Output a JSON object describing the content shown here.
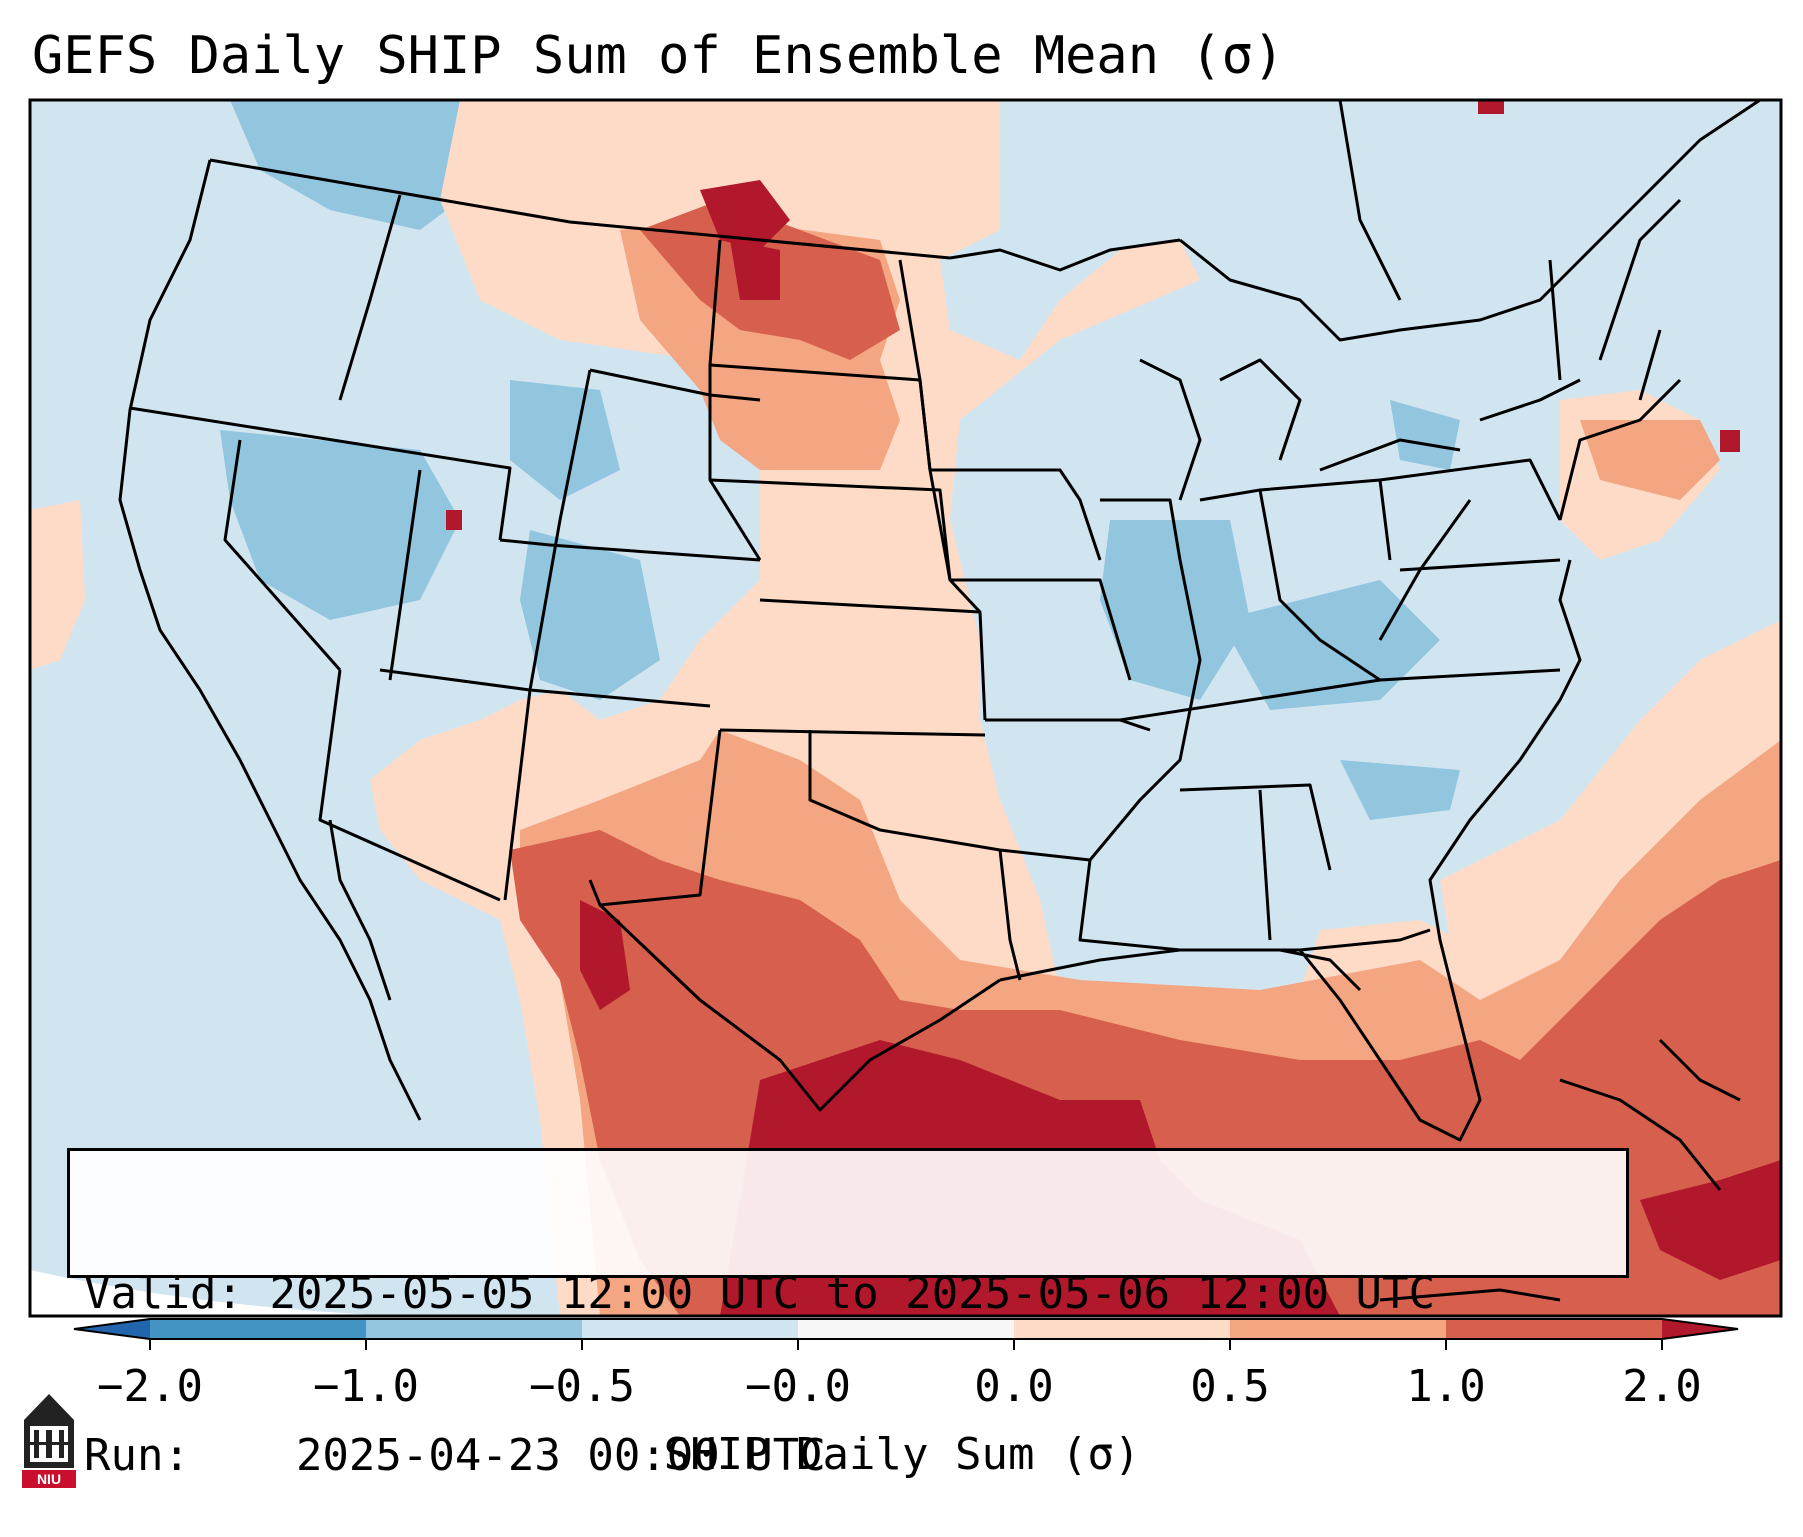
{
  "title": "GEFS Daily SHIP Sum of Ensemble Mean (σ)",
  "info": {
    "valid_label": "Valid:",
    "valid_value": "2025-05-05 12:00 UTC to 2025-05-06 12:00 UTC",
    "run_label": "Run:",
    "run_value": "2025-04-23 00:00 UTC"
  },
  "colorbar": {
    "title": "SHIP Daily Sum (σ)",
    "ticks": [
      "−2.0",
      "−1.0",
      "−0.5",
      "−0.0",
      "0.0",
      "0.5",
      "1.0",
      "2.0"
    ],
    "bins": [
      {
        "range": "< -2.0",
        "color": "#2166ac"
      },
      {
        "range": "-2.0 to -1.0",
        "color": "#4393c3"
      },
      {
        "range": "-1.0 to -0.5",
        "color": "#92c5de"
      },
      {
        "range": "-0.5 to -0.0",
        "color": "#d1e5f0"
      },
      {
        "range": "-0.0 to 0.0",
        "color": "#f7f7f7"
      },
      {
        "range": "0.0 to 0.5",
        "color": "#fddbc7"
      },
      {
        "range": "0.5 to 1.0",
        "color": "#f4a582"
      },
      {
        "range": "1.0 to 2.0",
        "color": "#d6604d"
      },
      {
        "range": "> 2.0",
        "color": "#b2182b"
      }
    ]
  },
  "logo": {
    "text": "NIU"
  },
  "map": {
    "background_color": "#d1e5f0",
    "border_color": "#000000"
  }
}
